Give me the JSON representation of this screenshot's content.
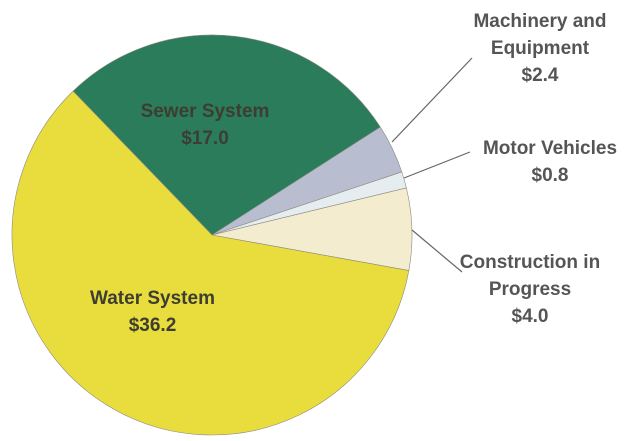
{
  "chart_data": {
    "type": "pie",
    "categories": [
      "Sewer System",
      "Machinery and Equipment",
      "Motor Vehicles",
      "Construction in Progress",
      "Water System"
    ],
    "values": [
      17.0,
      2.4,
      0.8,
      4.0,
      36.2
    ],
    "value_labels": [
      "$17.0",
      "$2.4",
      "$0.8",
      "$4.0",
      "$36.2"
    ],
    "colors": [
      "#2b7c5b",
      "#b9bdd0",
      "#e6edf0",
      "#f4ecce",
      "#e9dd3e"
    ]
  }
}
